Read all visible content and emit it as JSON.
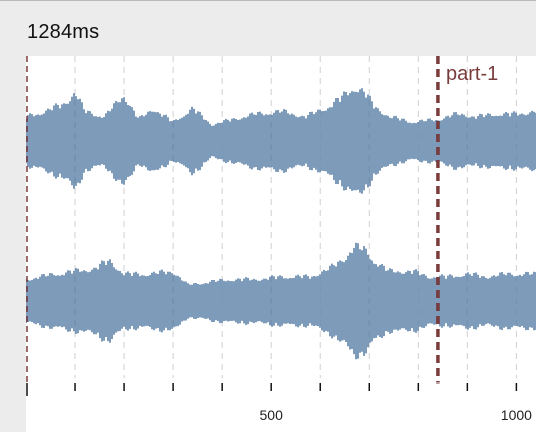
{
  "time_readout": "1284ms",
  "marker": {
    "label": "part-1",
    "position_ms": 840,
    "color": "#7a3b3b"
  },
  "start_marker_color": "#7a3b3b",
  "waveform_color": "#5d82a8",
  "grid_color": "#cfcfcf",
  "timeline": {
    "view_start_ms": 0,
    "view_end_ms": 1040,
    "minor_tick_every_ms": 100,
    "labels": [
      {
        "ms": 500,
        "text": "500"
      },
      {
        "ms": 1000,
        "text": "1000"
      }
    ]
  },
  "channels": [
    {
      "name_id": "channel-1",
      "envelope": [
        [
          0,
          0.45
        ],
        [
          40,
          0.55
        ],
        [
          80,
          0.7
        ],
        [
          100,
          0.9
        ],
        [
          120,
          0.55
        ],
        [
          160,
          0.45
        ],
        [
          200,
          0.85
        ],
        [
          230,
          0.4
        ],
        [
          260,
          0.6
        ],
        [
          300,
          0.35
        ],
        [
          340,
          0.6
        ],
        [
          380,
          0.3
        ],
        [
          420,
          0.4
        ],
        [
          470,
          0.5
        ],
        [
          520,
          0.55
        ],
        [
          570,
          0.45
        ],
        [
          620,
          0.65
        ],
        [
          650,
          0.85
        ],
        [
          670,
          1.0
        ],
        [
          690,
          0.9
        ],
        [
          710,
          0.65
        ],
        [
          740,
          0.45
        ],
        [
          790,
          0.35
        ],
        [
          840,
          0.4
        ],
        [
          880,
          0.5
        ],
        [
          920,
          0.45
        ],
        [
          960,
          0.5
        ],
        [
          1000,
          0.5
        ],
        [
          1040,
          0.55
        ]
      ]
    },
    {
      "name_id": "channel-2",
      "envelope": [
        [
          0,
          0.4
        ],
        [
          60,
          0.5
        ],
        [
          100,
          0.55
        ],
        [
          140,
          0.6
        ],
        [
          170,
          0.75
        ],
        [
          200,
          0.5
        ],
        [
          250,
          0.5
        ],
        [
          300,
          0.55
        ],
        [
          330,
          0.3
        ],
        [
          370,
          0.35
        ],
        [
          420,
          0.4
        ],
        [
          470,
          0.4
        ],
        [
          520,
          0.45
        ],
        [
          580,
          0.45
        ],
        [
          620,
          0.6
        ],
        [
          650,
          0.8
        ],
        [
          670,
          1.0
        ],
        [
          690,
          0.95
        ],
        [
          710,
          0.75
        ],
        [
          740,
          0.55
        ],
        [
          790,
          0.55
        ],
        [
          820,
          0.45
        ],
        [
          860,
          0.45
        ],
        [
          900,
          0.5
        ],
        [
          940,
          0.45
        ],
        [
          980,
          0.5
        ],
        [
          1040,
          0.5
        ]
      ]
    }
  ]
}
